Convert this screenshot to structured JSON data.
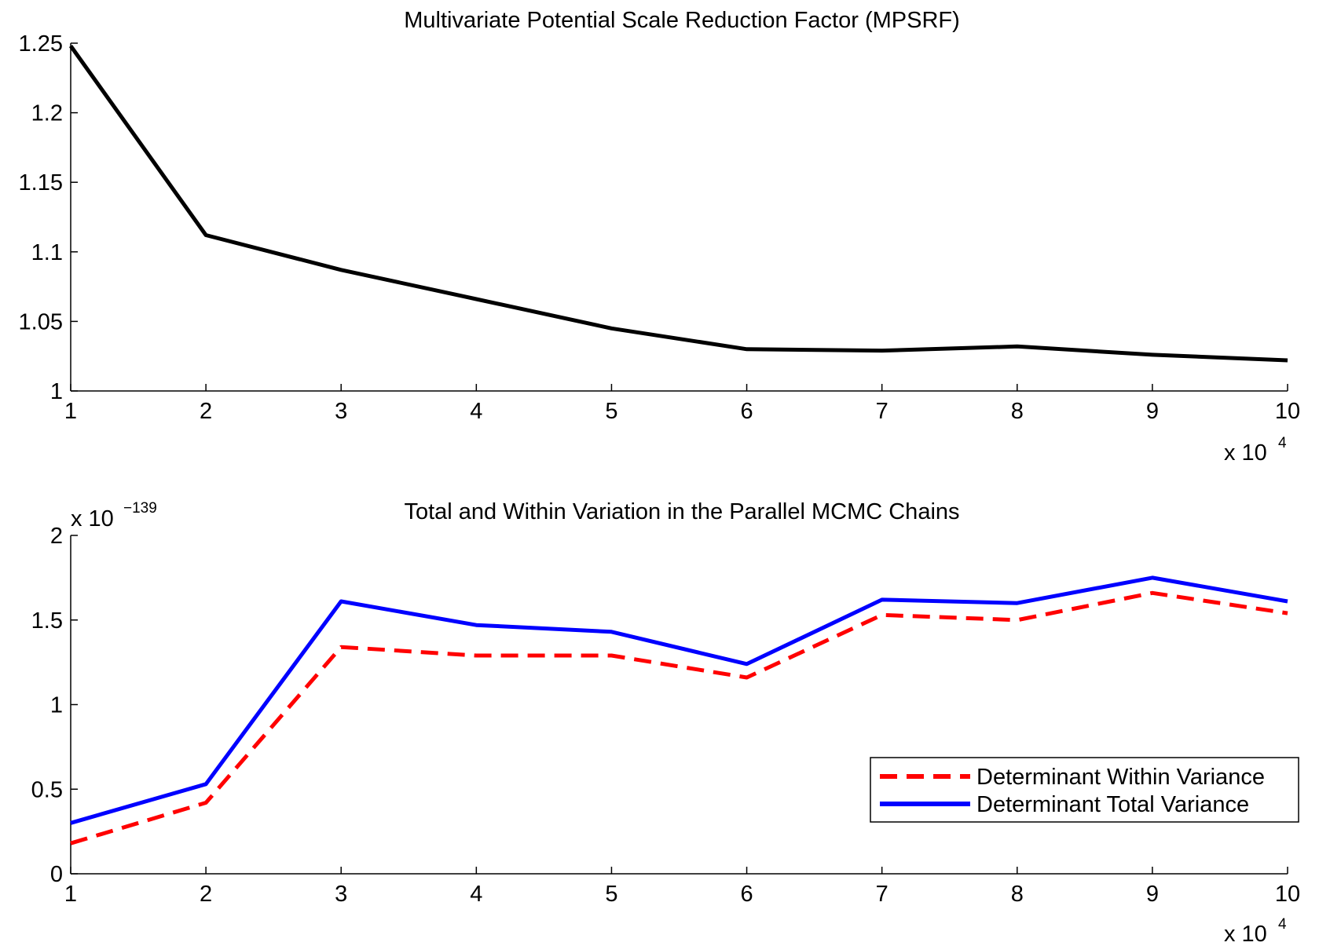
{
  "chart_data": [
    {
      "type": "line",
      "title": "Multivariate Potential Scale Reduction Factor (MPSRF)",
      "xlabel": "",
      "ylabel": "",
      "x_multiplier": {
        "base": "x 10",
        "exponent": "4"
      },
      "x": [
        1,
        2,
        3,
        4,
        5,
        6,
        7,
        8,
        9,
        10
      ],
      "xlim": [
        1,
        10
      ],
      "ylim": [
        1,
        1.25
      ],
      "xticks": [
        "1",
        "2",
        "3",
        "4",
        "5",
        "6",
        "7",
        "8",
        "9",
        "10"
      ],
      "yticks": [
        "1",
        "1.05",
        "1.1",
        "1.15",
        "1.2",
        "1.25"
      ],
      "ytick_values": [
        1,
        1.05,
        1.1,
        1.15,
        1.2,
        1.25
      ],
      "grid": false,
      "series": [
        {
          "values": [
            1.248,
            1.112,
            1.087,
            1.066,
            1.045,
            1.03,
            1.029,
            1.032,
            1.026,
            1.022
          ],
          "color": "#000000",
          "style": "solid"
        }
      ]
    },
    {
      "type": "line",
      "title": "Total and Within Variation in the Parallel MCMC Chains",
      "xlabel": "",
      "ylabel": "",
      "x_multiplier": {
        "base": "x 10",
        "exponent": "4"
      },
      "y_multiplier": {
        "base": "x 10",
        "exponent": "−139"
      },
      "x": [
        1,
        2,
        3,
        4,
        5,
        6,
        7,
        8,
        9,
        10
      ],
      "xlim": [
        1,
        10
      ],
      "ylim": [
        0,
        2
      ],
      "xticks": [
        "1",
        "2",
        "3",
        "4",
        "5",
        "6",
        "7",
        "8",
        "9",
        "10"
      ],
      "yticks": [
        "0",
        "0.5",
        "1",
        "1.5",
        "2"
      ],
      "ytick_values": [
        0,
        0.5,
        1,
        1.5,
        2
      ],
      "grid": false,
      "legend_position": "bottom-right",
      "series": [
        {
          "name": "Determinant Within Variance",
          "values": [
            0.18,
            0.42,
            1.34,
            1.29,
            1.29,
            1.16,
            1.53,
            1.5,
            1.66,
            1.54
          ],
          "color": "#ff0000",
          "style": "dashed"
        },
        {
          "name": "Determinant Total Variance",
          "values": [
            0.3,
            0.53,
            1.61,
            1.47,
            1.43,
            1.24,
            1.62,
            1.6,
            1.75,
            1.61
          ],
          "color": "#0000ff",
          "style": "solid"
        }
      ]
    }
  ]
}
